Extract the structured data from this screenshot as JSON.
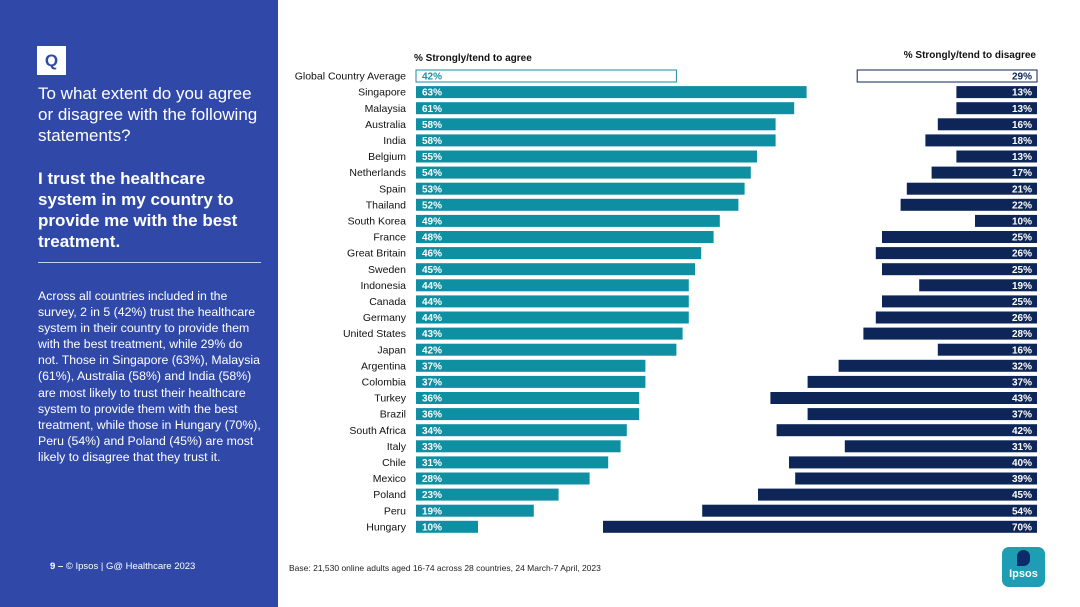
{
  "sidebar": {
    "q_badge": "Q",
    "question": "To what extent do you agree or disagree with the following statements?",
    "statement": "I trust the healthcare system in my country to provide me with the best treatment.",
    "summary": "Across all countries included in the survey, 2 in 5 (42%) trust the healthcare system in their country to provide them with the best treatment, while 29% do not. Those in Singapore (63%), Malaysia (61%), Australia (58%) and India (58%) are most likely to trust their healthcare system to provide them with the best treatment, while those in Hungary (70%), Peru (54%) and Poland (45%) are most likely to disagree that they trust it."
  },
  "footer": {
    "page_number": "9 –",
    "copyright": "© Ipsos | G@ Healthcare 2023",
    "base_note": "Base: 21,530 online adults aged 16-74 across 28 countries, 24 March-7 April, 2023"
  },
  "logo": {
    "text": "Ipsos"
  },
  "colors": {
    "sidebar": "#3049a8",
    "agree": "#0f8fa2",
    "disagree": "#0d2557",
    "outline": "#1a8ea3"
  },
  "chart_data": {
    "type": "bar",
    "orientation": "horizontal",
    "headers": {
      "agree": "% Strongly/tend to agree",
      "disagree": "% Strongly/tend to disagree"
    },
    "categories": [
      "Global Country Average",
      "Singapore",
      "Malaysia",
      "Australia",
      "India",
      "Belgium",
      "Netherlands",
      "Spain",
      "Thailand",
      "South Korea",
      "France",
      "Great Britain",
      "Sweden",
      "Indonesia",
      "Canada",
      "Germany",
      "United States",
      "Japan",
      "Argentina",
      "Colombia",
      "Turkey",
      "Brazil",
      "South Africa",
      "Italy",
      "Chile",
      "Mexico",
      "Poland",
      "Peru",
      "Hungary"
    ],
    "series": [
      {
        "name": "% Strongly/tend to agree",
        "values": [
          42,
          63,
          61,
          58,
          58,
          55,
          54,
          53,
          52,
          49,
          48,
          46,
          45,
          44,
          44,
          44,
          43,
          42,
          37,
          37,
          36,
          36,
          34,
          33,
          31,
          28,
          23,
          19,
          10
        ]
      },
      {
        "name": "% Strongly/tend to disagree",
        "values": [
          29,
          13,
          13,
          16,
          18,
          13,
          17,
          21,
          22,
          10,
          25,
          26,
          25,
          19,
          25,
          26,
          28,
          16,
          32,
          37,
          43,
          37,
          42,
          31,
          40,
          39,
          45,
          54,
          70
        ]
      }
    ],
    "highlight_category": "Global Country Average",
    "value_suffix": "%",
    "xlim": [
      0,
      70
    ]
  }
}
